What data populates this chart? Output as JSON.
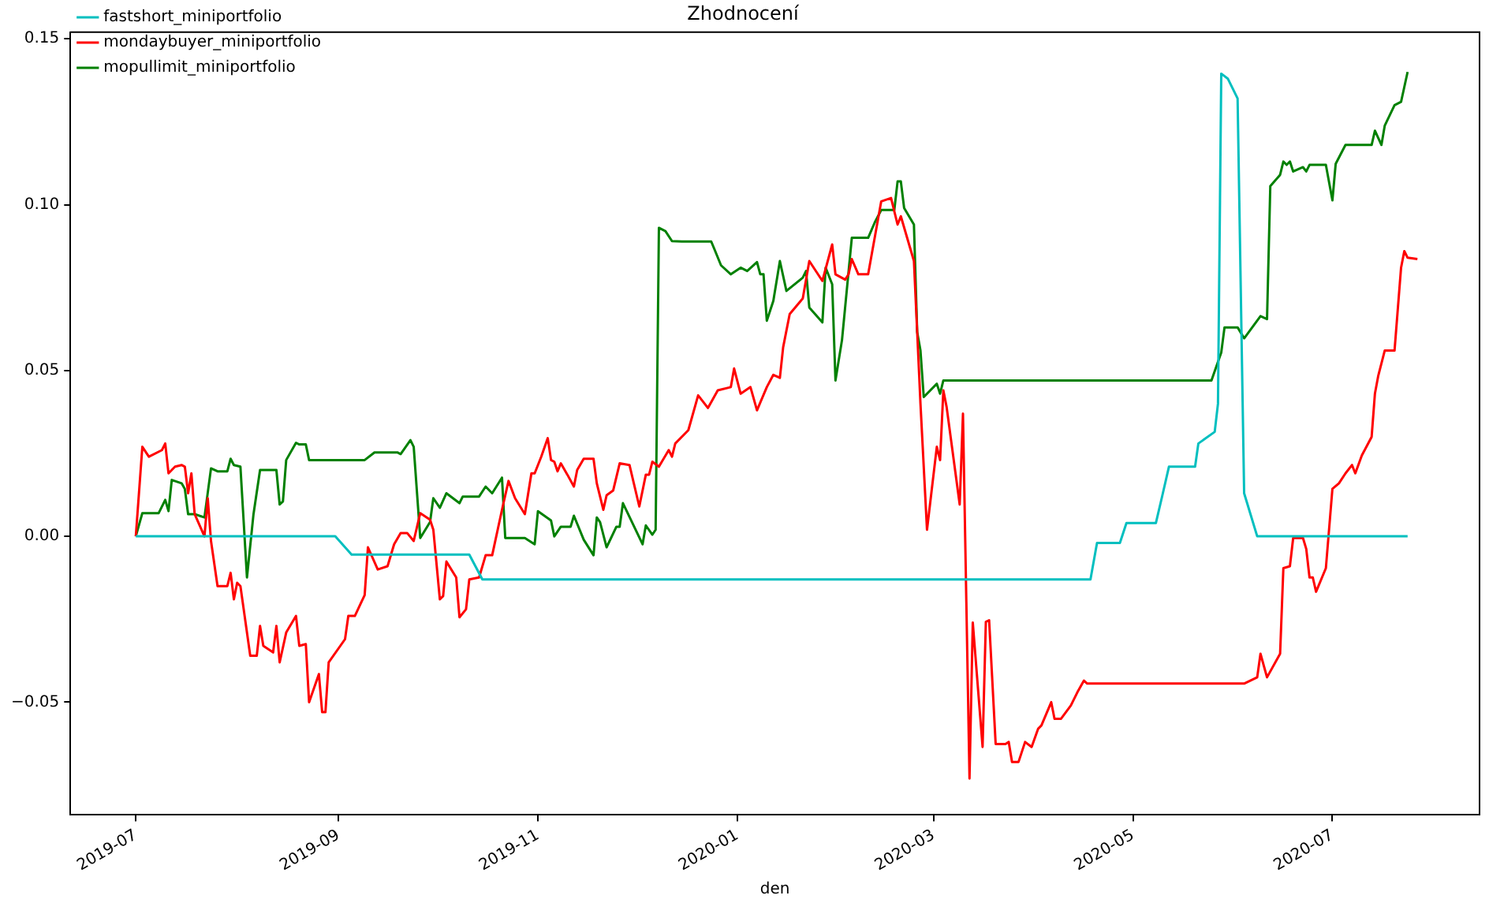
{
  "chart_data": {
    "type": "line",
    "title": "Zhodnocení",
    "xlabel": "den",
    "legend": "top left",
    "grid": false,
    "marker": "none",
    "line_style": "solid",
    "xlim": [
      "2019-06-11",
      "2020-08-15"
    ],
    "ylim": [
      -0.084,
      0.152
    ],
    "xticks": [
      {
        "value": "2019-07-01",
        "label": "2019-07"
      },
      {
        "value": "2019-09-01",
        "label": "2019-09"
      },
      {
        "value": "2019-11-01",
        "label": "2019-11"
      },
      {
        "value": "2020-01-01",
        "label": "2020-01"
      },
      {
        "value": "2020-03-01",
        "label": "2020-03"
      },
      {
        "value": "2020-05-01",
        "label": "2020-05"
      },
      {
        "value": "2020-07-01",
        "label": "2020-07"
      }
    ],
    "yticks": [
      {
        "value": -0.05,
        "label": "−0.05"
      },
      {
        "value": 0,
        "label": "0.00"
      },
      {
        "value": 0.05,
        "label": "0.05"
      },
      {
        "value": 0.1,
        "label": "0.10"
      },
      {
        "value": 0.15,
        "label": "0.15"
      }
    ],
    "series": [
      {
        "name": "fastshort_miniportfolio",
        "color": "#00bfbf",
        "x": [
          "2019-07-01",
          "2019-08-31",
          "2019-09-05",
          "2019-10-11",
          "2019-10-15",
          "2020-04-18",
          "2020-04-20",
          "2020-04-27",
          "2020-04-29",
          "2020-05-08",
          "2020-05-10",
          "2020-05-12",
          "2020-05-20",
          "2020-05-21",
          "2020-05-26",
          "2020-05-27",
          "2020-05-28",
          "2020-05-30",
          "2020-06-02",
          "2020-06-04",
          "2020-06-08",
          "2020-07-24"
        ],
        "values": [
          0,
          0,
          -0.0055,
          -0.0055,
          -0.013,
          -0.013,
          -0.002,
          -0.002,
          0.004,
          0.004,
          0.0124,
          0.021,
          0.021,
          0.028,
          0.0315,
          0.04,
          0.1395,
          0.138,
          0.132,
          0.013,
          0,
          0
        ]
      },
      {
        "name": "mondaybuyer_miniportfolio",
        "color": "#ff0000",
        "x": [
          "2019-07-01",
          "2019-07-03",
          "2019-07-05",
          "2019-07-09",
          "2019-07-10",
          "2019-07-11",
          "2019-07-13",
          "2019-07-15",
          "2019-07-16",
          "2019-07-17",
          "2019-07-18",
          "2019-07-19",
          "2019-07-22",
          "2019-07-23",
          "2019-07-24",
          "2019-07-26",
          "2019-07-29",
          "2019-07-30",
          "2019-07-31",
          "2019-08-01",
          "2019-08-02",
          "2019-08-05",
          "2019-08-07",
          "2019-08-08",
          "2019-08-09",
          "2019-08-12",
          "2019-08-13",
          "2019-08-14",
          "2019-08-16",
          "2019-08-19",
          "2019-08-20",
          "2019-08-22",
          "2019-08-23",
          "2019-08-26",
          "2019-08-27",
          "2019-08-28",
          "2019-08-29",
          "2019-09-03",
          "2019-09-04",
          "2019-09-06",
          "2019-09-09",
          "2019-09-10",
          "2019-09-13",
          "2019-09-16",
          "2019-09-18",
          "2019-09-20",
          "2019-09-22",
          "2019-09-24",
          "2019-09-26",
          "2019-09-29",
          "2019-09-30",
          "2019-10-02",
          "2019-10-03",
          "2019-10-04",
          "2019-10-07",
          "2019-10-08",
          "2019-10-10",
          "2019-10-11",
          "2019-10-14",
          "2019-10-16",
          "2019-10-18",
          "2019-10-21",
          "2019-10-23",
          "2019-10-25",
          "2019-10-28",
          "2019-10-30",
          "2019-10-31",
          "2019-11-02",
          "2019-11-04",
          "2019-11-05",
          "2019-11-06",
          "2019-11-07",
          "2019-11-08",
          "2019-11-10",
          "2019-11-12",
          "2019-11-13",
          "2019-11-15",
          "2019-11-18",
          "2019-11-19",
          "2019-11-21",
          "2019-11-22",
          "2019-11-24",
          "2019-11-26",
          "2019-11-29",
          "2019-12-02",
          "2019-12-04",
          "2019-12-05",
          "2019-12-06",
          "2019-12-08",
          "2019-12-11",
          "2019-12-12",
          "2019-12-13",
          "2019-12-17",
          "2019-12-20",
          "2019-12-23",
          "2019-12-26",
          "2019-12-30",
          "2019-12-31",
          "2020-01-02",
          "2020-01-05",
          "2020-01-07",
          "2020-01-10",
          "2020-01-12",
          "2020-01-14",
          "2020-01-15",
          "2020-01-17",
          "2020-01-21",
          "2020-01-23",
          "2020-01-27",
          "2020-01-30",
          "2020-01-31",
          "2020-02-03",
          "2020-02-04",
          "2020-02-05",
          "2020-02-07",
          "2020-02-10",
          "2020-02-14",
          "2020-02-17",
          "2020-02-19",
          "2020-02-20",
          "2020-02-24",
          "2020-02-26",
          "2020-02-28",
          "2020-03-02",
          "2020-03-03",
          "2020-03-04",
          "2020-03-05",
          "2020-03-09",
          "2020-03-10",
          "2020-03-12",
          "2020-03-13",
          "2020-03-16",
          "2020-03-17",
          "2020-03-18",
          "2020-03-20",
          "2020-03-23",
          "2020-03-24",
          "2020-03-25",
          "2020-03-27",
          "2020-03-29",
          "2020-03-31",
          "2020-04-02",
          "2020-04-03",
          "2020-04-06",
          "2020-04-07",
          "2020-04-09",
          "2020-04-12",
          "2020-04-14",
          "2020-04-16",
          "2020-04-17",
          "2020-06-04",
          "2020-06-08",
          "2020-06-09",
          "2020-06-11",
          "2020-06-15",
          "2020-06-16",
          "2020-06-18",
          "2020-06-19",
          "2020-06-22",
          "2020-06-23",
          "2020-06-24",
          "2020-06-25",
          "2020-06-26",
          "2020-06-29",
          "2020-07-01",
          "2020-07-03",
          "2020-07-05",
          "2020-07-07",
          "2020-07-08",
          "2020-07-10",
          "2020-07-13",
          "2020-07-14",
          "2020-07-15",
          "2020-07-17",
          "2020-07-20",
          "2020-07-22",
          "2020-07-23",
          "2020-07-24",
          "2020-07-27"
        ],
        "values": [
          0,
          0.027,
          0.024,
          0.026,
          0.028,
          0.019,
          0.021,
          0.0215,
          0.021,
          0.013,
          0.019,
          0.0067,
          0,
          0.0115,
          -0.0014,
          -0.015,
          -0.015,
          -0.011,
          -0.019,
          -0.014,
          -0.015,
          -0.036,
          -0.036,
          -0.027,
          -0.033,
          -0.035,
          -0.027,
          -0.038,
          -0.029,
          -0.024,
          -0.033,
          -0.0325,
          -0.05,
          -0.0415,
          -0.053,
          -0.053,
          -0.038,
          -0.031,
          -0.024,
          -0.024,
          -0.0177,
          -0.0033,
          -0.01,
          -0.009,
          -0.0024,
          0.001,
          0.001,
          -0.0014,
          0.007,
          0.005,
          0.002,
          -0.019,
          -0.018,
          -0.0076,
          -0.0124,
          -0.0244,
          -0.022,
          -0.013,
          -0.0124,
          -0.0057,
          -0.0057,
          0.008,
          0.0167,
          0.0115,
          0.0067,
          0.019,
          0.019,
          0.024,
          0.0296,
          0.023,
          0.0225,
          0.0196,
          0.022,
          0.0186,
          0.015,
          0.02,
          0.0234,
          0.0234,
          0.016,
          0.008,
          0.0124,
          0.0138,
          0.022,
          0.0215,
          0.009,
          0.0186,
          0.0186,
          0.0225,
          0.021,
          0.026,
          0.024,
          0.028,
          0.032,
          0.0425,
          0.0387,
          0.044,
          0.045,
          0.0506,
          0.043,
          0.045,
          0.038,
          0.045,
          0.0487,
          0.0478,
          0.057,
          0.067,
          0.0717,
          0.083,
          0.077,
          0.088,
          0.079,
          0.0774,
          0.079,
          0.0836,
          0.079,
          0.079,
          0.101,
          0.102,
          0.094,
          0.0965,
          0.083,
          0.04,
          0.002,
          0.027,
          0.023,
          0.044,
          0.039,
          0.0096,
          0.037,
          -0.073,
          -0.026,
          -0.0635,
          -0.0258,
          -0.0253,
          -0.0626,
          -0.0626,
          -0.062,
          -0.068,
          -0.068,
          -0.062,
          -0.0635,
          -0.058,
          -0.057,
          -0.05,
          -0.055,
          -0.055,
          -0.051,
          -0.047,
          -0.0435,
          -0.0444,
          -0.0444,
          -0.0425,
          -0.0354,
          -0.0425,
          -0.0354,
          -0.0096,
          -0.009,
          -0.0005,
          -0.0005,
          -0.0038,
          -0.0124,
          -0.0124,
          -0.0167,
          -0.0096,
          0.0143,
          0.016,
          0.019,
          0.0215,
          0.019,
          0.0244,
          0.03,
          0.043,
          0.0483,
          0.056,
          0.056,
          0.081,
          0.086,
          0.084,
          0.0836
        ]
      },
      {
        "name": "mopullimit_miniportfolio",
        "color": "#008000",
        "x": [
          "2019-07-01",
          "2019-07-03",
          "2019-07-08",
          "2019-07-10",
          "2019-07-11",
          "2019-07-12",
          "2019-07-15",
          "2019-07-16",
          "2019-07-17",
          "2019-07-19",
          "2019-07-22",
          "2019-07-24",
          "2019-07-26",
          "2019-07-29",
          "2019-07-30",
          "2019-07-31",
          "2019-08-02",
          "2019-08-04",
          "2019-08-06",
          "2019-08-08",
          "2019-08-13",
          "2019-08-14",
          "2019-08-15",
          "2019-08-16",
          "2019-08-19",
          "2019-08-20",
          "2019-08-22",
          "2019-08-23",
          "2019-09-09",
          "2019-09-12",
          "2019-09-19",
          "2019-09-20",
          "2019-09-23",
          "2019-09-24",
          "2019-09-26",
          "2019-09-29",
          "2019-09-30",
          "2019-10-02",
          "2019-10-04",
          "2019-10-08",
          "2019-10-09",
          "2019-10-14",
          "2019-10-16",
          "2019-10-18",
          "2019-10-21",
          "2019-10-22",
          "2019-10-28",
          "2019-10-31",
          "2019-11-01",
          "2019-11-05",
          "2019-11-06",
          "2019-11-08",
          "2019-11-11",
          "2019-11-12",
          "2019-11-15",
          "2019-11-18",
          "2019-11-19",
          "2019-11-20",
          "2019-11-22",
          "2019-11-25",
          "2019-11-26",
          "2019-11-27",
          "2019-11-30",
          "2019-12-03",
          "2019-12-04",
          "2019-12-06",
          "2019-12-07",
          "2019-12-08",
          "2019-12-10",
          "2019-12-12",
          "2019-12-15",
          "2019-12-24",
          "2019-12-25",
          "2019-12-27",
          "2019-12-30",
          "2020-01-02",
          "2020-01-04",
          "2020-01-07",
          "2020-01-08",
          "2020-01-09",
          "2020-01-10",
          "2020-01-12",
          "2020-01-14",
          "2020-01-16",
          "2020-01-21",
          "2020-01-22",
          "2020-01-23",
          "2020-01-27",
          "2020-01-28",
          "2020-01-30",
          "2020-01-31",
          "2020-02-02",
          "2020-02-05",
          "2020-02-10",
          "2020-02-12",
          "2020-02-14",
          "2020-02-18",
          "2020-02-19",
          "2020-02-20",
          "2020-02-21",
          "2020-02-24",
          "2020-02-25",
          "2020-02-26",
          "2020-02-27",
          "2020-03-02",
          "2020-03-03",
          "2020-03-04",
          "2020-05-25",
          "2020-05-28",
          "2020-05-29",
          "2020-06-02",
          "2020-06-04",
          "2020-06-09",
          "2020-06-11",
          "2020-06-12",
          "2020-06-15",
          "2020-06-16",
          "2020-06-17",
          "2020-06-18",
          "2020-06-19",
          "2020-06-22",
          "2020-06-23",
          "2020-06-24",
          "2020-06-29",
          "2020-07-01",
          "2020-07-02",
          "2020-07-05",
          "2020-07-13",
          "2020-07-14",
          "2020-07-16",
          "2020-07-17",
          "2020-07-20",
          "2020-07-22",
          "2020-07-24"
        ],
        "values": [
          0,
          0.007,
          0.007,
          0.011,
          0.0076,
          0.017,
          0.016,
          0.0143,
          0.0067,
          0.0067,
          0.0057,
          0.0205,
          0.0196,
          0.0196,
          0.0234,
          0.0215,
          0.021,
          -0.0124,
          0.0067,
          0.02,
          0.02,
          0.0096,
          0.0105,
          0.023,
          0.0282,
          0.0277,
          0.0277,
          0.023,
          0.023,
          0.0253,
          0.0253,
          0.0248,
          0.029,
          0.027,
          -0.0005,
          0.0043,
          0.0115,
          0.0086,
          0.013,
          0.01,
          0.012,
          0.012,
          0.015,
          0.013,
          0.0177,
          -0.0005,
          -0.0005,
          -0.0024,
          0.0076,
          0.0048,
          0,
          0.0029,
          0.0029,
          0.0062,
          -0.001,
          -0.0057,
          0.0057,
          0.0043,
          -0.0033,
          0.0029,
          0.0029,
          0.01,
          0.0038,
          -0.0024,
          0.0033,
          0.0005,
          0.002,
          0.093,
          0.092,
          0.089,
          0.0889,
          0.0889,
          0.0865,
          0.0817,
          0.079,
          0.081,
          0.08,
          0.0827,
          0.079,
          0.079,
          0.065,
          0.071,
          0.083,
          0.074,
          0.078,
          0.08,
          0.069,
          0.0645,
          0.081,
          0.076,
          0.047,
          0.0592,
          0.09,
          0.09,
          0.0946,
          0.0984,
          0.0984,
          0.107,
          0.107,
          0.099,
          0.094,
          0.0616,
          0.056,
          0.042,
          0.046,
          0.043,
          0.047,
          0.047,
          0.0554,
          0.063,
          0.063,
          0.0597,
          0.0664,
          0.0655,
          0.1056,
          0.109,
          0.113,
          0.112,
          0.113,
          0.11,
          0.1113,
          0.11,
          0.112,
          0.112,
          0.1013,
          0.1123,
          0.118,
          0.118,
          0.1223,
          0.118,
          0.1238,
          0.13,
          0.131,
          0.14
        ]
      }
    ]
  }
}
